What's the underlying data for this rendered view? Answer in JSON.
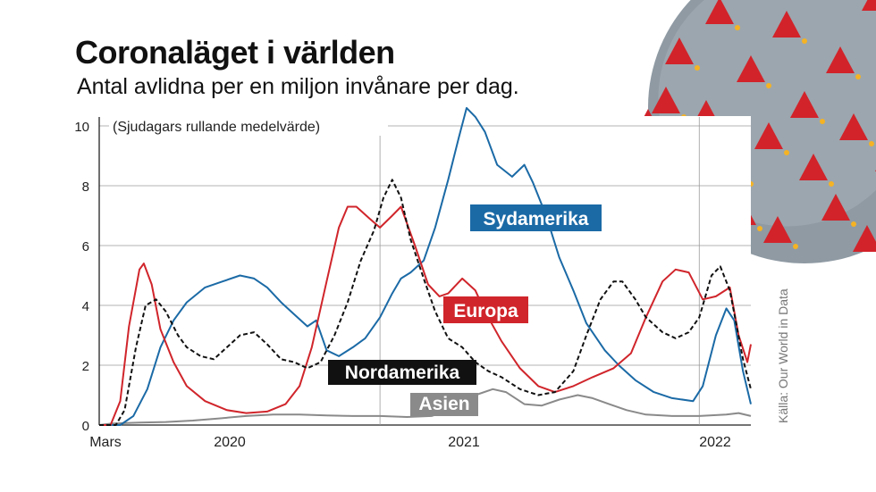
{
  "title": "Coronaläget i världen",
  "subtitle": "Antal avlidna per en miljon invånare per dag.",
  "source": "Källa: Our World in Data",
  "chart_data": {
    "type": "line",
    "annotation": "(Sjudagars rullande medelvärde)",
    "ylim": [
      0,
      10
    ],
    "yticks": [
      "0",
      "2",
      "4",
      "6",
      "8",
      "10"
    ],
    "xlabels": [
      "Mars",
      "2020",
      "2021",
      "2022"
    ],
    "xlim": [
      "2020-02-15",
      "2022-03-01"
    ],
    "grid": true,
    "series": [
      {
        "name": "Sydamerika",
        "color": "#1b6aa6",
        "dash": false,
        "points": [
          [
            "2020-02-15",
            0
          ],
          [
            "2020-03-10",
            0
          ],
          [
            "2020-03-25",
            0.3
          ],
          [
            "2020-04-10",
            1.2
          ],
          [
            "2020-04-25",
            2.6
          ],
          [
            "2020-05-10",
            3.5
          ],
          [
            "2020-05-25",
            4.1
          ],
          [
            "2020-06-15",
            4.6
          ],
          [
            "2020-07-05",
            4.8
          ],
          [
            "2020-07-25",
            5.0
          ],
          [
            "2020-08-10",
            4.9
          ],
          [
            "2020-08-25",
            4.6
          ],
          [
            "2020-09-10",
            4.1
          ],
          [
            "2020-09-25",
            3.7
          ],
          [
            "2020-10-10",
            3.3
          ],
          [
            "2020-10-20",
            3.5
          ],
          [
            "2020-11-01",
            2.5
          ],
          [
            "2020-11-15",
            2.3
          ],
          [
            "2020-12-01",
            2.6
          ],
          [
            "2020-12-15",
            2.9
          ],
          [
            "2021-01-01",
            3.6
          ],
          [
            "2021-01-15",
            4.4
          ],
          [
            "2021-01-25",
            4.9
          ],
          [
            "2021-02-05",
            5.1
          ],
          [
            "2021-02-20",
            5.5
          ],
          [
            "2021-03-05",
            6.6
          ],
          [
            "2021-03-20",
            8.2
          ],
          [
            "2021-04-01",
            9.6
          ],
          [
            "2021-04-10",
            10.6
          ],
          [
            "2021-04-20",
            10.3
          ],
          [
            "2021-05-01",
            9.8
          ],
          [
            "2021-05-15",
            8.7
          ],
          [
            "2021-06-01",
            8.3
          ],
          [
            "2021-06-15",
            8.7
          ],
          [
            "2021-06-25",
            8.1
          ],
          [
            "2021-07-10",
            7.0
          ],
          [
            "2021-07-25",
            5.6
          ],
          [
            "2021-08-10",
            4.5
          ],
          [
            "2021-08-25",
            3.4
          ],
          [
            "2021-09-15",
            2.5
          ],
          [
            "2021-10-01",
            2.0
          ],
          [
            "2021-10-20",
            1.5
          ],
          [
            "2021-11-10",
            1.1
          ],
          [
            "2021-12-01",
            0.9
          ],
          [
            "2021-12-25",
            0.8
          ],
          [
            "2022-01-05",
            1.3
          ],
          [
            "2022-01-20",
            3.0
          ],
          [
            "2022-02-01",
            3.9
          ],
          [
            "2022-02-10",
            3.5
          ],
          [
            "2022-02-20",
            1.8
          ],
          [
            "2022-03-01",
            0.7
          ]
        ]
      },
      {
        "name": "Europa",
        "color": "#d0252b",
        "dash": false,
        "points": [
          [
            "2020-02-15",
            0
          ],
          [
            "2020-02-28",
            0
          ],
          [
            "2020-03-10",
            0.8
          ],
          [
            "2020-03-20",
            3.3
          ],
          [
            "2020-04-01",
            5.2
          ],
          [
            "2020-04-06",
            5.4
          ],
          [
            "2020-04-15",
            4.7
          ],
          [
            "2020-04-25",
            3.2
          ],
          [
            "2020-05-10",
            2.1
          ],
          [
            "2020-05-25",
            1.3
          ],
          [
            "2020-06-15",
            0.8
          ],
          [
            "2020-07-10",
            0.5
          ],
          [
            "2020-08-01",
            0.4
          ],
          [
            "2020-08-25",
            0.45
          ],
          [
            "2020-09-15",
            0.7
          ],
          [
            "2020-10-01",
            1.3
          ],
          [
            "2020-10-15",
            2.6
          ],
          [
            "2020-11-01",
            4.8
          ],
          [
            "2020-11-15",
            6.6
          ],
          [
            "2020-11-25",
            7.3
          ],
          [
            "2020-12-05",
            7.3
          ],
          [
            "2020-12-20",
            6.9
          ],
          [
            "2021-01-01",
            6.6
          ],
          [
            "2021-01-15",
            7.0
          ],
          [
            "2021-01-25",
            7.3
          ],
          [
            "2021-02-10",
            6.0
          ],
          [
            "2021-02-25",
            4.7
          ],
          [
            "2021-03-10",
            4.3
          ],
          [
            "2021-03-20",
            4.4
          ],
          [
            "2021-04-05",
            4.9
          ],
          [
            "2021-04-20",
            4.5
          ],
          [
            "2021-05-01",
            3.8
          ],
          [
            "2021-05-20",
            2.8
          ],
          [
            "2021-06-10",
            1.9
          ],
          [
            "2021-07-01",
            1.3
          ],
          [
            "2021-07-20",
            1.1
          ],
          [
            "2021-08-10",
            1.3
          ],
          [
            "2021-09-01",
            1.6
          ],
          [
            "2021-09-25",
            1.9
          ],
          [
            "2021-10-15",
            2.4
          ],
          [
            "2021-11-01",
            3.6
          ],
          [
            "2021-11-20",
            4.8
          ],
          [
            "2021-12-05",
            5.2
          ],
          [
            "2021-12-20",
            5.1
          ],
          [
            "2022-01-05",
            4.2
          ],
          [
            "2022-01-20",
            4.3
          ],
          [
            "2022-02-05",
            4.6
          ],
          [
            "2022-02-15",
            3.0
          ],
          [
            "2022-02-25",
            2.1
          ],
          [
            "2022-03-01",
            2.7
          ]
        ]
      },
      {
        "name": "Nordamerika",
        "color": "#111111",
        "dash": true,
        "points": [
          [
            "2020-02-15",
            0
          ],
          [
            "2020-03-05",
            0
          ],
          [
            "2020-03-15",
            0.5
          ],
          [
            "2020-03-28",
            2.6
          ],
          [
            "2020-04-08",
            4.0
          ],
          [
            "2020-04-20",
            4.2
          ],
          [
            "2020-05-01",
            3.8
          ],
          [
            "2020-05-15",
            3.0
          ],
          [
            "2020-05-25",
            2.6
          ],
          [
            "2020-06-10",
            2.3
          ],
          [
            "2020-06-25",
            2.2
          ],
          [
            "2020-07-10",
            2.6
          ],
          [
            "2020-07-25",
            3.0
          ],
          [
            "2020-08-10",
            3.1
          ],
          [
            "2020-08-25",
            2.7
          ],
          [
            "2020-09-10",
            2.2
          ],
          [
            "2020-09-25",
            2.1
          ],
          [
            "2020-10-10",
            1.9
          ],
          [
            "2020-10-25",
            2.1
          ],
          [
            "2020-11-10",
            3.0
          ],
          [
            "2020-11-25",
            4.1
          ],
          [
            "2020-12-10",
            5.5
          ],
          [
            "2020-12-25",
            6.5
          ],
          [
            "2021-01-05",
            7.6
          ],
          [
            "2021-01-15",
            8.2
          ],
          [
            "2021-01-25",
            7.6
          ],
          [
            "2021-02-05",
            6.2
          ],
          [
            "2021-02-20",
            4.9
          ],
          [
            "2021-03-05",
            3.8
          ],
          [
            "2021-03-20",
            2.9
          ],
          [
            "2021-04-05",
            2.6
          ],
          [
            "2021-04-20",
            2.1
          ],
          [
            "2021-05-05",
            1.8
          ],
          [
            "2021-05-20",
            1.6
          ],
          [
            "2021-06-10",
            1.2
          ],
          [
            "2021-07-01",
            1.0
          ],
          [
            "2021-07-20",
            1.1
          ],
          [
            "2021-08-10",
            1.8
          ],
          [
            "2021-08-25",
            3.0
          ],
          [
            "2021-09-10",
            4.2
          ],
          [
            "2021-09-25",
            4.8
          ],
          [
            "2021-10-05",
            4.8
          ],
          [
            "2021-10-20",
            4.2
          ],
          [
            "2021-11-01",
            3.6
          ],
          [
            "2021-11-20",
            3.1
          ],
          [
            "2021-12-05",
            2.9
          ],
          [
            "2021-12-20",
            3.1
          ],
          [
            "2022-01-01",
            3.6
          ],
          [
            "2022-01-15",
            5.0
          ],
          [
            "2022-01-25",
            5.3
          ],
          [
            "2022-02-05",
            4.5
          ],
          [
            "2022-02-20",
            2.2
          ],
          [
            "2022-03-01",
            1.2
          ]
        ]
      },
      {
        "name": "Asien",
        "color": "#8a8a8a",
        "dash": false,
        "points": [
          [
            "2020-02-15",
            0
          ],
          [
            "2020-03-01",
            0.05
          ],
          [
            "2020-04-01",
            0.08
          ],
          [
            "2020-05-01",
            0.1
          ],
          [
            "2020-06-01",
            0.15
          ],
          [
            "2020-07-01",
            0.22
          ],
          [
            "2020-08-01",
            0.3
          ],
          [
            "2020-09-01",
            0.35
          ],
          [
            "2020-10-01",
            0.35
          ],
          [
            "2020-11-01",
            0.32
          ],
          [
            "2020-12-01",
            0.3
          ],
          [
            "2021-01-01",
            0.3
          ],
          [
            "2021-02-01",
            0.27
          ],
          [
            "2021-03-01",
            0.3
          ],
          [
            "2021-04-01",
            0.6
          ],
          [
            "2021-04-20",
            1.0
          ],
          [
            "2021-05-10",
            1.2
          ],
          [
            "2021-05-25",
            1.1
          ],
          [
            "2021-06-15",
            0.7
          ],
          [
            "2021-07-05",
            0.65
          ],
          [
            "2021-07-25",
            0.85
          ],
          [
            "2021-08-15",
            1.0
          ],
          [
            "2021-09-01",
            0.9
          ],
          [
            "2021-09-20",
            0.7
          ],
          [
            "2021-10-10",
            0.5
          ],
          [
            "2021-11-01",
            0.35
          ],
          [
            "2021-12-01",
            0.3
          ],
          [
            "2022-01-01",
            0.3
          ],
          [
            "2022-02-01",
            0.35
          ],
          [
            "2022-02-15",
            0.4
          ],
          [
            "2022-03-01",
            0.3
          ]
        ]
      }
    ],
    "labels": [
      {
        "series": "Sydamerika",
        "text": "Sydamerika",
        "bg": "#1b6aa6",
        "fg": "#ffffff"
      },
      {
        "series": "Europa",
        "text": "Europa",
        "bg": "#d0252b",
        "fg": "#ffffff"
      },
      {
        "series": "Nordamerika",
        "text": "Nordamerika",
        "bg": "#111111",
        "fg": "#ffffff"
      },
      {
        "series": "Asien",
        "text": "Asien",
        "bg": "#8a8a8a",
        "fg": "#ffffff"
      }
    ]
  },
  "illustration": {
    "name": "coronavirus-illustration",
    "body_color": "#8f9aa3",
    "spike_color": "#d2232a",
    "tip_color": "#f5b324"
  }
}
